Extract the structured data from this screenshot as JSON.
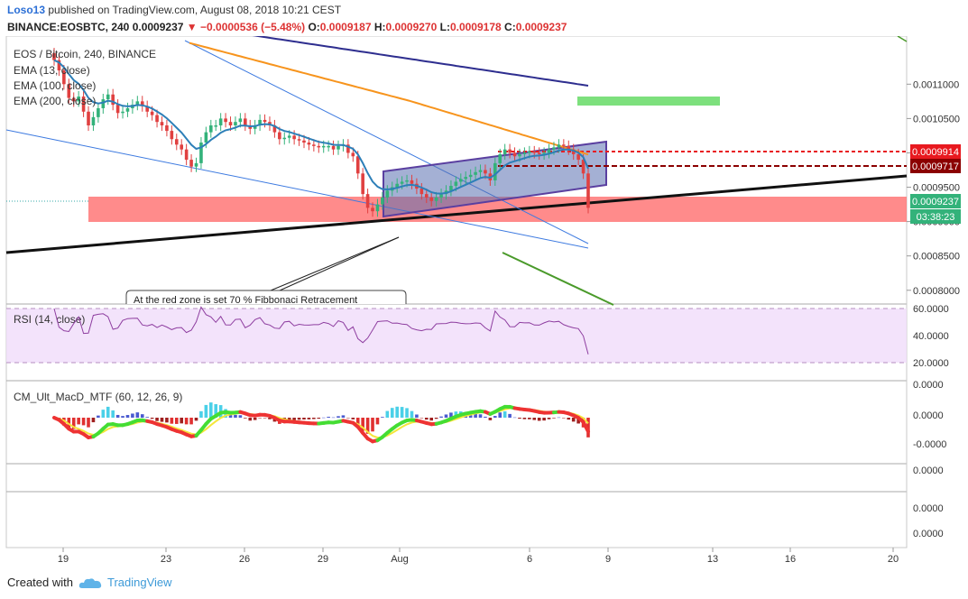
{
  "header": {
    "user": "Loso13",
    "published": "published on TradingView.com, August 08, 2018 10:21 CEST",
    "symbol": "BINANCE:EOSBTC, 240",
    "last": "0.0009237",
    "change_arrow": "▼",
    "change": "−0.0000536 (−5.48%)",
    "o_label": "O:",
    "o": "0.0009187",
    "h_label": "H:",
    "h": "0.0009270",
    "l_label": "L:",
    "l": "0.0009178",
    "c_label": "C:",
    "c": "0.0009237"
  },
  "legend": {
    "title": "EOS / Bitcoin, 240, BINANCE",
    "ema13": "EMA (13, close)",
    "ema100": "EMA (100, close)",
    "ema200": "EMA (200, close)",
    "rsi": "RSI (14, close)",
    "macd": "CM_Ult_MacD_MTF (60, 12, 26, 9)"
  },
  "annotation": "At the red zone is set 70 % Fibbonaci Retracement",
  "footer": {
    "created": "Created with",
    "brand": "TradingView"
  },
  "chart_data": {
    "type": "candlestick",
    "x_ticks": [
      "19",
      "23",
      "26",
      "29",
      "Aug",
      "6",
      "9",
      "13",
      "16",
      "20"
    ],
    "price_axis": [
      "0.0011000",
      "0.0010500",
      "0.0010000",
      "0.0009500",
      "0.0009000",
      "0.0008500",
      "0.0008000"
    ],
    "price_labels": [
      {
        "value": "0.0009914",
        "color": "#e8191f"
      },
      {
        "value": "0.0009717",
        "color": "#8b0000"
      },
      {
        "value": "0.0009237",
        "color": "#33b27a"
      },
      {
        "value": "03:38:23",
        "color": "#33b27a"
      }
    ],
    "rsi_axis": [
      "60.0000",
      "40.0000",
      "20.0000"
    ],
    "macd_axis": [
      "0.0000",
      "0.0000",
      "-0.0000"
    ],
    "sub_axis1": [
      "0.0000"
    ],
    "sub_axis2": [
      "0.0000",
      "0.0000"
    ],
    "price_range": [
      0.00078,
      0.00117
    ],
    "rsi_range": [
      15,
      75
    ],
    "closes": [
      0.001135,
      0.00112,
      0.0011,
      0.00108,
      0.001075,
      0.001082,
      0.00106,
      0.00104,
      0.001052,
      0.001065,
      0.001078,
      0.001085,
      0.00107,
      0.001058,
      0.00106,
      0.001065,
      0.00107,
      0.001075,
      0.001068,
      0.00106,
      0.001055,
      0.001045,
      0.00104,
      0.001032,
      0.00102,
      0.001012,
      0.001005,
      0.00099,
      0.00098,
      0.000985,
      0.001015,
      0.00103,
      0.00104,
      0.00104,
      0.00105,
      0.001045,
      0.00104,
      0.001045,
      0.00105,
      0.00104,
      0.001035,
      0.00104,
      0.001048,
      0.001045,
      0.00104,
      0.00103,
      0.00102,
      0.001022,
      0.001025,
      0.00102,
      0.001018,
      0.001015,
      0.001012,
      0.00101,
      0.001008,
      0.00101,
      0.00101,
      0.001005,
      0.00101,
      0.001012,
      0.001,
      0.000995,
      0.00097,
      0.00094,
      0.00092,
      0.000915,
      0.000925,
      0.000935,
      0.000945,
      0.00095,
      0.000955,
      0.000958,
      0.00096,
      0.000955,
      0.000948,
      0.00094,
      0.000935,
      0.00093,
      0.000935,
      0.00094,
      0.000945,
      0.000952,
      0.000958,
      0.000962,
      0.000965,
      0.000968,
      0.000972,
      0.000975,
      0.00097,
      0.00096,
      0.000985,
      0.000998,
      0.001005,
      0.001,
      0.000995,
      0.000998,
      0.001,
      0.001002,
      0.001,
      0.000998,
      0.001,
      0.001005,
      0.001008,
      0.001012,
      0.00101,
      0.001005,
      0.000998,
      0.00099,
      0.00097,
      0.00092
    ]
  }
}
